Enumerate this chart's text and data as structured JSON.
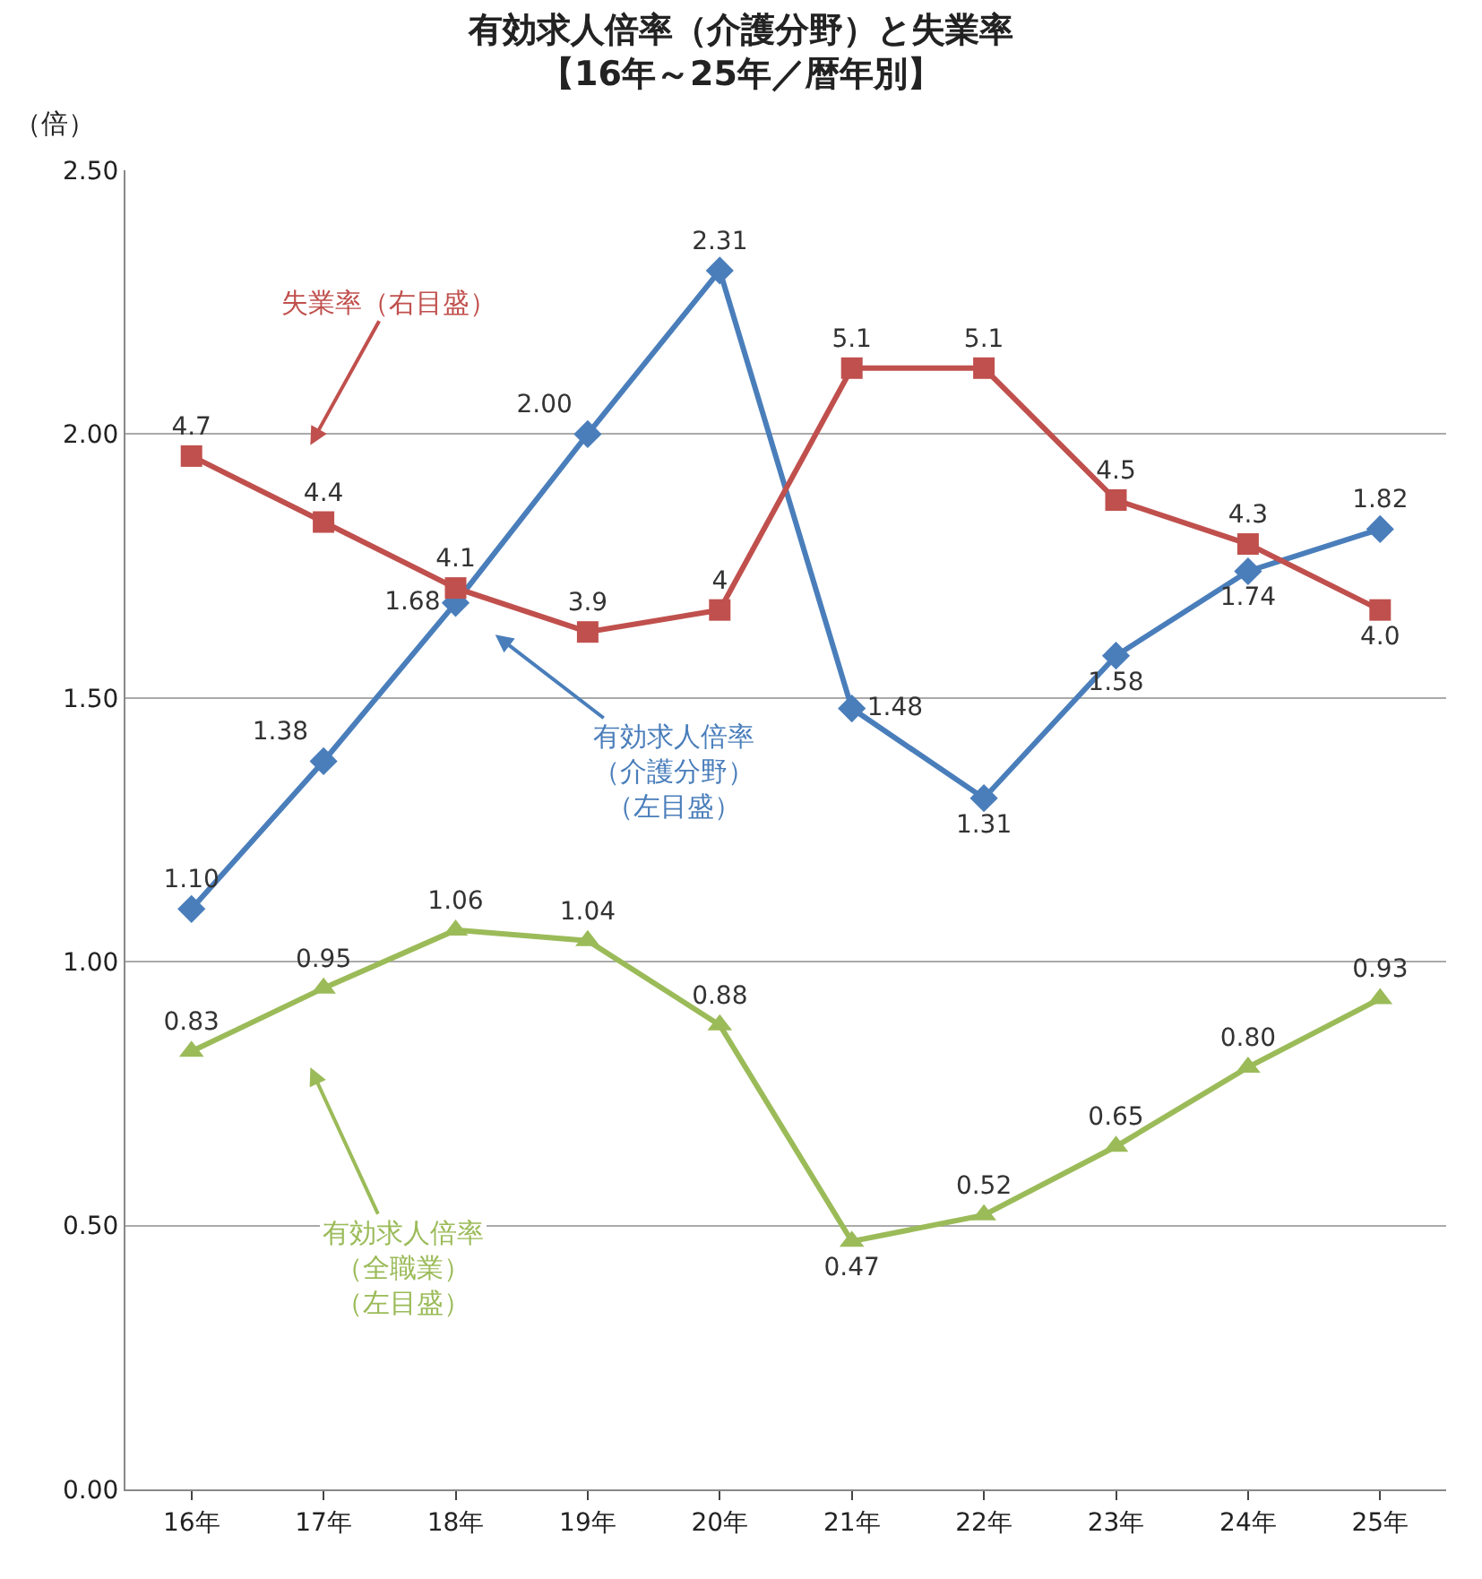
{
  "chart_data": {
    "type": "line",
    "title": "有効求人倍率（介護分野）と失業率",
    "subtitle": "【16年～25年／暦年別】",
    "ylabel": "（倍）",
    "categories": [
      "16年",
      "17年",
      "18年",
      "19年",
      "20年",
      "21年",
      "22年",
      "23年",
      "24年",
      "25年"
    ],
    "series": [
      {
        "name": "有効求人倍率（介護分野）（左目盛）",
        "color": "#4a7ebb",
        "marker": "diamond",
        "values": [
          1.1,
          1.38,
          1.68,
          2.0,
          2.31,
          1.48,
          1.31,
          1.58,
          1.74,
          1.82
        ],
        "value_labels": [
          "1.10",
          "1.38",
          "1.68",
          "2.00",
          "2.31",
          "1.48",
          "1.31",
          "1.58",
          "1.74",
          "1.82"
        ]
      },
      {
        "name": "失業率（右目盛）",
        "color": "#c0504d",
        "marker": "square",
        "axis": "y2",
        "values": [
          4.7,
          4.4,
          4.1,
          3.9,
          4,
          5.1,
          5.1,
          4.5,
          4.3,
          4.0
        ],
        "value_labels": [
          "4.7",
          "4.4",
          "4.1",
          "3.9",
          "4",
          "5.1",
          "5.1",
          "4.5",
          "4.3",
          "4.0"
        ]
      },
      {
        "name": "有効求人倍率（全職業）（左目盛）",
        "color": "#9bbb59",
        "marker": "triangle",
        "values": [
          0.83,
          0.95,
          1.06,
          1.04,
          0.88,
          0.47,
          0.52,
          0.65,
          0.8,
          0.93
        ],
        "value_labels": [
          "0.83",
          "0.95",
          "1.06",
          "1.04",
          "0.88",
          "0.47",
          "0.52",
          "0.65",
          "0.80",
          "0.93"
        ]
      }
    ],
    "ylim": [
      0,
      2.5
    ],
    "yticks": [
      {
        "value": 0,
        "label": "0.00"
      },
      {
        "value": 0.5,
        "label": "0.50"
      },
      {
        "value": 1,
        "label": "1.00"
      },
      {
        "value": 1.5,
        "label": "1.50"
      },
      {
        "value": 2,
        "label": "2.00"
      },
      {
        "value": 2.5,
        "label": "2.50"
      }
    ],
    "y2lim": [
      0,
      6
    ],
    "grid": "y",
    "legend": false
  }
}
